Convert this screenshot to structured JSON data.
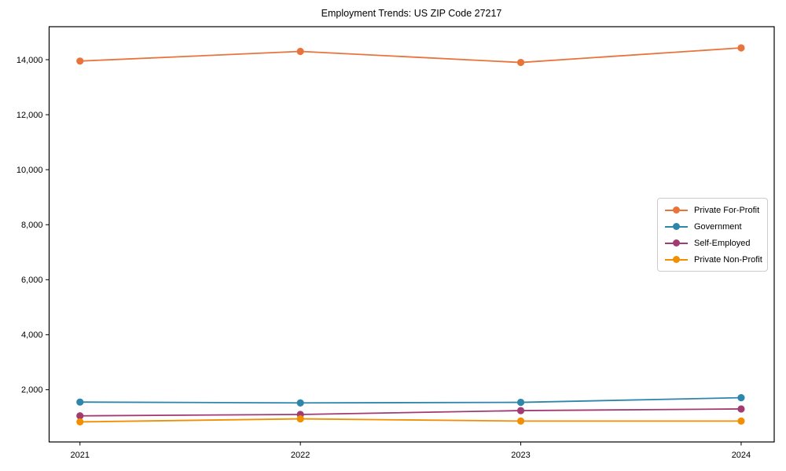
{
  "figure": {
    "title": "Employment Trends: US ZIP Code 27217"
  },
  "chart_data": {
    "type": "line",
    "title": "Employment Trends: US ZIP Code 27217",
    "x": [
      2021,
      2022,
      2023,
      2024
    ],
    "x_tick_labels": [
      "2021",
      "2022",
      "2023",
      "2024"
    ],
    "series": [
      {
        "name": "Private For-Profit",
        "color": "#E8743B",
        "values": [
          13950,
          14300,
          13900,
          14430
        ]
      },
      {
        "name": "Government",
        "color": "#2E86AB",
        "values": [
          1550,
          1520,
          1540,
          1710
        ]
      },
      {
        "name": "Self-Employed",
        "color": "#A23B72",
        "values": [
          1050,
          1100,
          1240,
          1300
        ]
      },
      {
        "name": "Private Non-Profit",
        "color": "#F18F01",
        "values": [
          830,
          940,
          860,
          860
        ]
      }
    ],
    "xlabel": "",
    "ylabel": "",
    "xlim": [
      2020.86,
      2024.15
    ],
    "ylim": [
      100,
      15200
    ],
    "yticks": [
      2000,
      4000,
      6000,
      8000,
      10000,
      12000,
      14000
    ],
    "grid": false,
    "legend_position": "center-right",
    "marker": "circle",
    "line_color_axis": "#000000",
    "tick_label_color": "#000000"
  }
}
